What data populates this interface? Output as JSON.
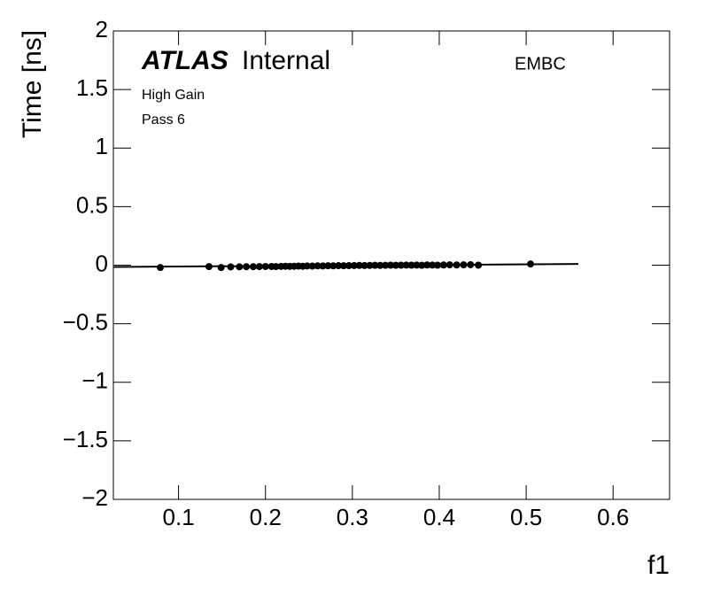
{
  "chart_data": {
    "type": "scatter",
    "ylabel": "Time [ns]",
    "xlabel": "f1",
    "experiment": "ATLAS",
    "status": "Internal",
    "region": "EMBC",
    "annotations": [
      "High Gain",
      "Pass 6"
    ],
    "xlim": [
      0.025,
      0.665
    ],
    "ylim": [
      -2,
      2
    ],
    "xticks": [
      0.1,
      0.2,
      0.3,
      0.4,
      0.5,
      0.6
    ],
    "yticks": [
      {
        "value": -2,
        "label": "−2"
      },
      {
        "value": -1.5,
        "label": "−1.5"
      },
      {
        "value": -1,
        "label": "−1"
      },
      {
        "value": -0.5,
        "label": "−0.5"
      },
      0,
      0.5,
      1,
      1.5,
      2
    ],
    "color": "#000000",
    "x": [
      0.079,
      0.135,
      0.149,
      0.16,
      0.17,
      0.178,
      0.186,
      0.193,
      0.2,
      0.207,
      0.212,
      0.218,
      0.223,
      0.228,
      0.233,
      0.238,
      0.243,
      0.248,
      0.254,
      0.26,
      0.266,
      0.272,
      0.278,
      0.284,
      0.29,
      0.296,
      0.302,
      0.308,
      0.314,
      0.32,
      0.326,
      0.332,
      0.338,
      0.344,
      0.35,
      0.356,
      0.362,
      0.368,
      0.374,
      0.38,
      0.386,
      0.392,
      0.398,
      0.405,
      0.412,
      0.42,
      0.428,
      0.436,
      0.445,
      0.505
    ],
    "values": [
      -0.02,
      -0.012,
      -0.02,
      -0.015,
      -0.014,
      -0.013,
      -0.013,
      -0.012,
      -0.011,
      -0.011,
      -0.012,
      -0.01,
      -0.009,
      -0.01,
      -0.009,
      -0.008,
      -0.009,
      -0.007,
      -0.008,
      -0.006,
      -0.007,
      -0.005,
      -0.006,
      -0.004,
      -0.005,
      -0.004,
      -0.003,
      -0.002,
      -0.003,
      -0.002,
      -0.001,
      -0.002,
      -0.001,
      0.0,
      -0.001,
      0.0,
      0.001,
      0.0,
      0.001,
      -0.001,
      0.002,
      0.001,
      0.0,
      0.002,
      0.003,
      0.002,
      0.003,
      0.004,
      0.0,
      0.01
    ],
    "fit": {
      "x": [
        0.025,
        0.56
      ],
      "values": [
        -0.015,
        0.01
      ]
    }
  }
}
